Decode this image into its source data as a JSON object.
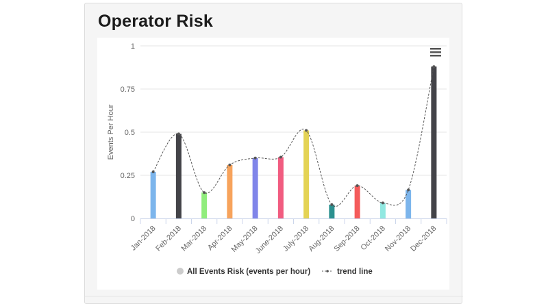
{
  "panel": {
    "title": "Operator Risk"
  },
  "chart_data": {
    "type": "bar",
    "title": "Operator Risk",
    "ylabel": "Events Per Hour",
    "xlabel": "",
    "ylim": [
      0,
      1
    ],
    "yticks": [
      "0",
      "0.25",
      "0.5",
      "0.75",
      "1"
    ],
    "ytick_values": [
      0,
      0.25,
      0.5,
      0.75,
      1
    ],
    "categories": [
      "Jan-2018",
      "Feb-2018",
      "Mar-2018",
      "Apr-2018",
      "May-2018",
      "June-2018",
      "July-2018",
      "Aug-2018",
      "Sep-2018",
      "Oct-2018",
      "Nov-2018",
      "Dec-2018"
    ],
    "series": [
      {
        "name": "All Events Risk (events per hour)",
        "type": "bar",
        "values": [
          0.27,
          0.49,
          0.15,
          0.31,
          0.35,
          0.355,
          0.51,
          0.08,
          0.19,
          0.09,
          0.165,
          0.88
        ],
        "colors": [
          "#7cb5ec",
          "#434348",
          "#90ed7d",
          "#f7a35c",
          "#8085e9",
          "#f15c80",
          "#e4d354",
          "#2b908f",
          "#f45b5b",
          "#91e8e1",
          "#7cb5ec",
          "#434348"
        ]
      },
      {
        "name": "trend line",
        "type": "spline",
        "values": [
          0.27,
          0.49,
          0.15,
          0.31,
          0.35,
          0.355,
          0.51,
          0.08,
          0.19,
          0.09,
          0.165,
          0.88
        ],
        "color": "#555555"
      }
    ],
    "legend": {
      "position": "bottom",
      "items": [
        {
          "label": "All Events Risk (events per hour)",
          "symbol": "circle",
          "color": "#cccccc"
        },
        {
          "label": "trend line",
          "symbol": "dashed-line",
          "color": "#555555"
        }
      ]
    },
    "grid": true,
    "menu_icon": "hamburger-menu-icon"
  }
}
